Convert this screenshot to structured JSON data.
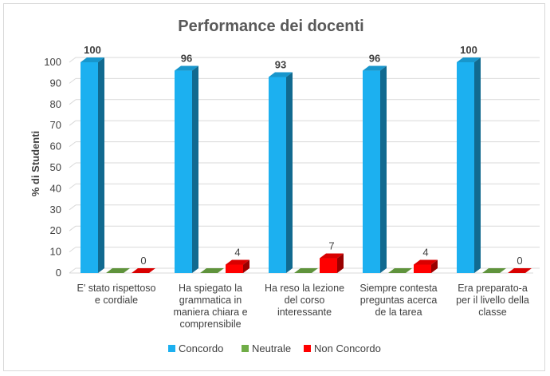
{
  "chart_data": {
    "type": "bar",
    "title": "Performance dei docenti",
    "ylabel": "% di Studenti",
    "xlabel": "",
    "ylim": [
      0,
      100
    ],
    "yticks": [
      0,
      10,
      20,
      30,
      40,
      50,
      60,
      70,
      80,
      90,
      100
    ],
    "grid": true,
    "legend_position": "bottom",
    "categories": [
      [
        "E' stato rispettoso",
        "e cordiale"
      ],
      [
        "Ha spiegato la",
        "grammatica in",
        "maniera chiara e",
        "comprensibile"
      ],
      [
        "Ha reso la lezione",
        "del corso",
        "interessante"
      ],
      [
        "Siempre contesta",
        "preguntas acerca",
        "de la tarea"
      ],
      [
        "Era preparato-a",
        "per il livello della",
        "classe"
      ]
    ],
    "series": [
      {
        "name": "Concordo",
        "color": "#1cb0f0",
        "values": [
          100,
          96,
          93,
          96,
          100
        ],
        "labels": [
          "100",
          "96",
          "93",
          "96",
          "100"
        ]
      },
      {
        "name": "Neutrale",
        "color": "#70ad47",
        "values": [
          0,
          0,
          0,
          0,
          0
        ],
        "labels": []
      },
      {
        "name": "Non Concordo",
        "color": "#ff0000",
        "values": [
          0,
          4,
          7,
          4,
          0
        ],
        "labels": [
          "0",
          "4",
          "7",
          "4",
          "0"
        ]
      }
    ]
  }
}
